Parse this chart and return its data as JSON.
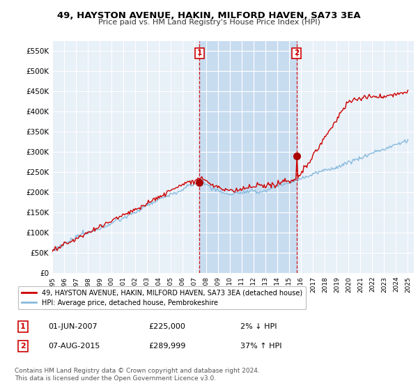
{
  "title": "49, HAYSTON AVENUE, HAKIN, MILFORD HAVEN, SA73 3EA",
  "subtitle": "Price paid vs. HM Land Registry's House Price Index (HPI)",
  "ylabel_ticks": [
    "£0",
    "£50K",
    "£100K",
    "£150K",
    "£200K",
    "£250K",
    "£300K",
    "£350K",
    "£400K",
    "£450K",
    "£500K",
    "£550K"
  ],
  "ytick_values": [
    0,
    50000,
    100000,
    150000,
    200000,
    250000,
    300000,
    350000,
    400000,
    450000,
    500000,
    550000
  ],
  "ylim": [
    0,
    575000
  ],
  "xlim_start": 1995,
  "xlim_end": 2025.5,
  "sale1_x": 2007.42,
  "sale1_price": 225000,
  "sale2_x": 2015.6,
  "sale2_price": 289999,
  "line_color_property": "#cc0000",
  "line_color_hpi": "#88bbdd",
  "vline_color": "#cc0000",
  "background_color": "#e8f0f8",
  "shade_color": "#c8dcf0",
  "grid_color": "#ffffff",
  "legend_property": "49, HAYSTON AVENUE, HAKIN, MILFORD HAVEN, SA73 3EA (detached house)",
  "legend_hpi": "HPI: Average price, detached house, Pembrokeshire",
  "footer": "Contains HM Land Registry data © Crown copyright and database right 2024.\nThis data is licensed under the Open Government Licence v3.0.",
  "note1_date": "01-JUN-2007",
  "note1_price": "£225,000",
  "note1_pct": "2% ↓ HPI",
  "note2_date": "07-AUG-2015",
  "note2_price": "£289,999",
  "note2_pct": "37% ↑ HPI"
}
